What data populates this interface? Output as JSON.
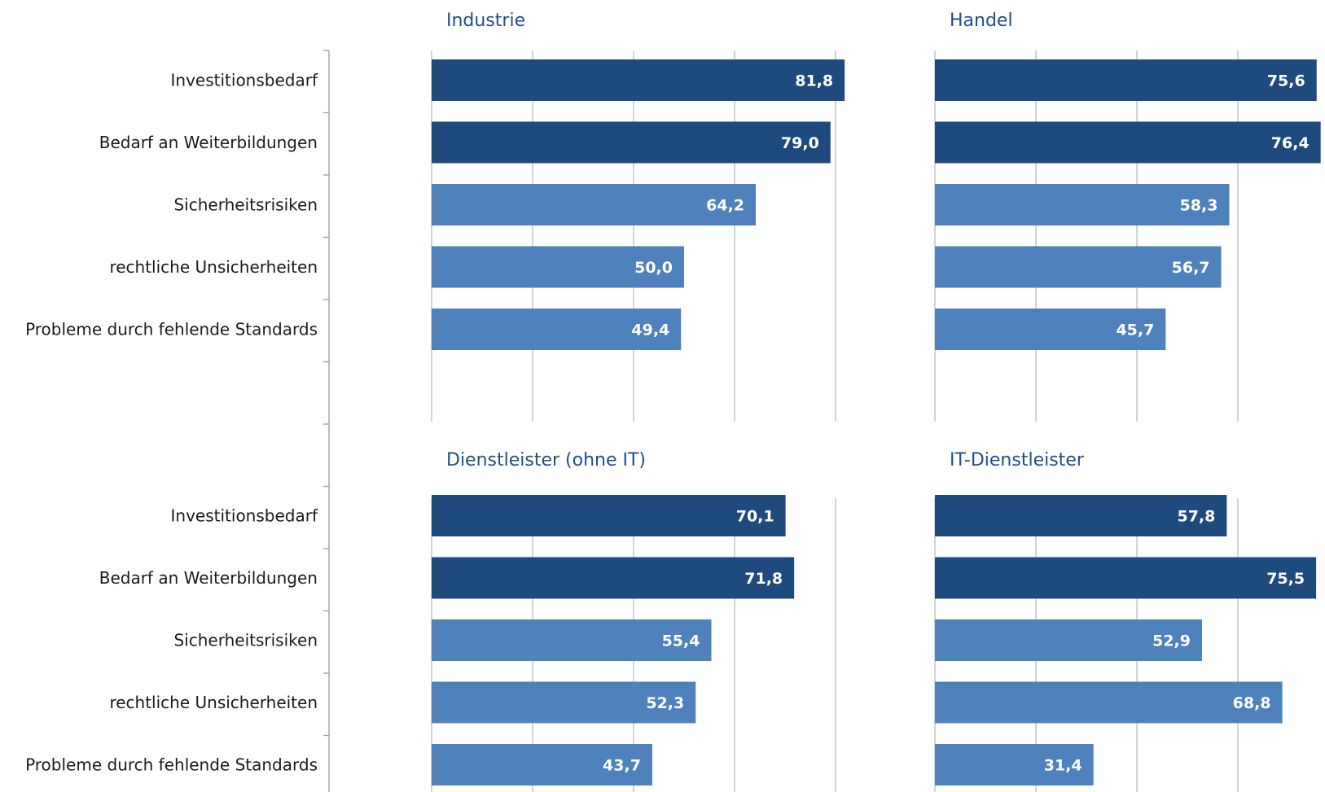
{
  "colors": {
    "dark": "#1f4a7e",
    "light": "#4f81bd",
    "title": "#1f4e8c"
  },
  "chart_data": [
    {
      "type": "bar",
      "orientation": "horizontal",
      "title": "Industrie",
      "categories": [
        "Investitionsbedarf",
        "Bedarf an Weiterbildungen",
        "Sicherheitsrisiken",
        "rechtliche Unsicherheiten",
        "Probleme durch fehlende Standards"
      ],
      "values": [
        81.8,
        79.0,
        64.2,
        50.0,
        49.4
      ],
      "value_labels": [
        "81,8",
        "79,0",
        "64,2",
        "50,0",
        "49,4"
      ],
      "bar_colors": [
        "dark",
        "dark",
        "light",
        "light",
        "light"
      ],
      "xlim": [
        0,
        80
      ],
      "grid": true
    },
    {
      "type": "bar",
      "orientation": "horizontal",
      "title": "Handel",
      "categories": [
        "Investitionsbedarf",
        "Bedarf an Weiterbildungen",
        "Sicherheitsrisiken",
        "rechtliche Unsicherheiten",
        "Probleme durch fehlende Standards"
      ],
      "values": [
        75.6,
        76.4,
        58.3,
        56.7,
        45.7
      ],
      "value_labels": [
        "75,6",
        "76,4",
        "58,3",
        "56,7",
        "45,7"
      ],
      "bar_colors": [
        "dark",
        "dark",
        "light",
        "light",
        "light"
      ],
      "xlim": [
        0,
        80
      ],
      "grid": true
    },
    {
      "type": "bar",
      "orientation": "horizontal",
      "title": "Dienstleister (ohne IT)",
      "categories": [
        "Investitionsbedarf",
        "Bedarf an Weiterbildungen",
        "Sicherheitsrisiken",
        "rechtliche Unsicherheiten",
        "Probleme durch fehlende Standards"
      ],
      "values": [
        70.1,
        71.8,
        55.4,
        52.3,
        43.7
      ],
      "value_labels": [
        "70,1",
        "71,8",
        "55,4",
        "52,3",
        "43,7"
      ],
      "bar_colors": [
        "dark",
        "dark",
        "light",
        "light",
        "light"
      ],
      "xlim": [
        0,
        80
      ],
      "grid": true
    },
    {
      "type": "bar",
      "orientation": "horizontal",
      "title": "IT-Dienstleister",
      "categories": [
        "Investitionsbedarf",
        "Bedarf an Weiterbildungen",
        "Sicherheitsrisiken",
        "rechtliche Unsicherheiten",
        "Probleme durch fehlende Standards"
      ],
      "values": [
        57.8,
        75.5,
        52.9,
        68.8,
        31.4
      ],
      "value_labels": [
        "57,8",
        "75,5",
        "52,9",
        "68,8",
        "31,4"
      ],
      "bar_colors": [
        "dark",
        "dark",
        "light",
        "light",
        "light"
      ],
      "xlim": [
        0,
        80
      ],
      "grid": true
    }
  ]
}
